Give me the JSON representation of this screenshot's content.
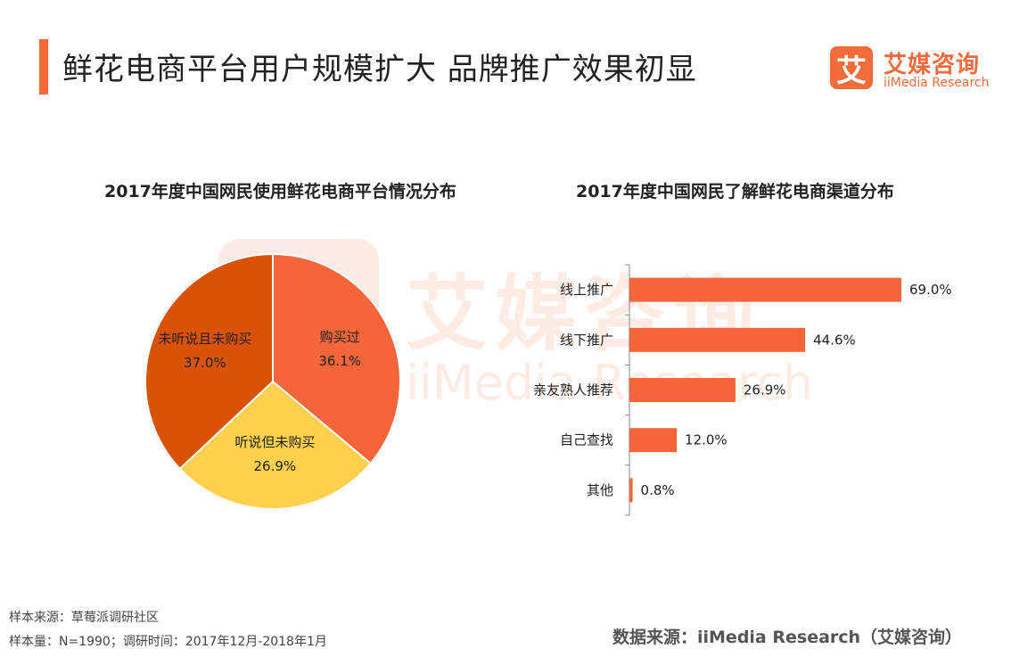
{
  "page": {
    "title": "鲜花电商平台用户规模扩大 品牌推广效果初显",
    "logo_glyph": "艾",
    "logo_name": "艾媒咨询",
    "logo_sub": "iiMedia Research",
    "watermark_text": "艾媒咨询",
    "watermark_sub": "iiMedia Research",
    "accent_color": "#f26b3a"
  },
  "footer": {
    "sample_source": "样本来源：草莓派调研社区",
    "sample_info": "样本量：N=1990；调研时间：2017年12月-2018年1月",
    "data_source": "数据来源：iiMedia Research（艾媒咨询）"
  },
  "chart_data": [
    {
      "type": "pie",
      "title": "2017年度中国网民使用鲜花电商平台情况分布",
      "slices": [
        {
          "label": "购买过",
          "value": 36.1,
          "value_label": "36.1%",
          "color": "#f5653a"
        },
        {
          "label": "听说但未购买",
          "value": 26.9,
          "value_label": "26.9%",
          "color": "#fdd04e"
        },
        {
          "label": "未听说且未购买",
          "value": 37.0,
          "value_label": "37.0%",
          "color": "#d95206"
        }
      ]
    },
    {
      "type": "bar",
      "orientation": "horizontal",
      "title": "2017年度中国网民了解鲜花电商渠道分布",
      "categories": [
        "线上推广",
        "线下推广",
        "亲友熟人推荐",
        "自己查找",
        "其他"
      ],
      "values": [
        69.0,
        44.6,
        26.9,
        12.0,
        0.8
      ],
      "value_labels": [
        "69.0%",
        "44.6%",
        "26.9%",
        "12.0%",
        "0.8%"
      ],
      "color": "#f5653a"
    }
  ]
}
